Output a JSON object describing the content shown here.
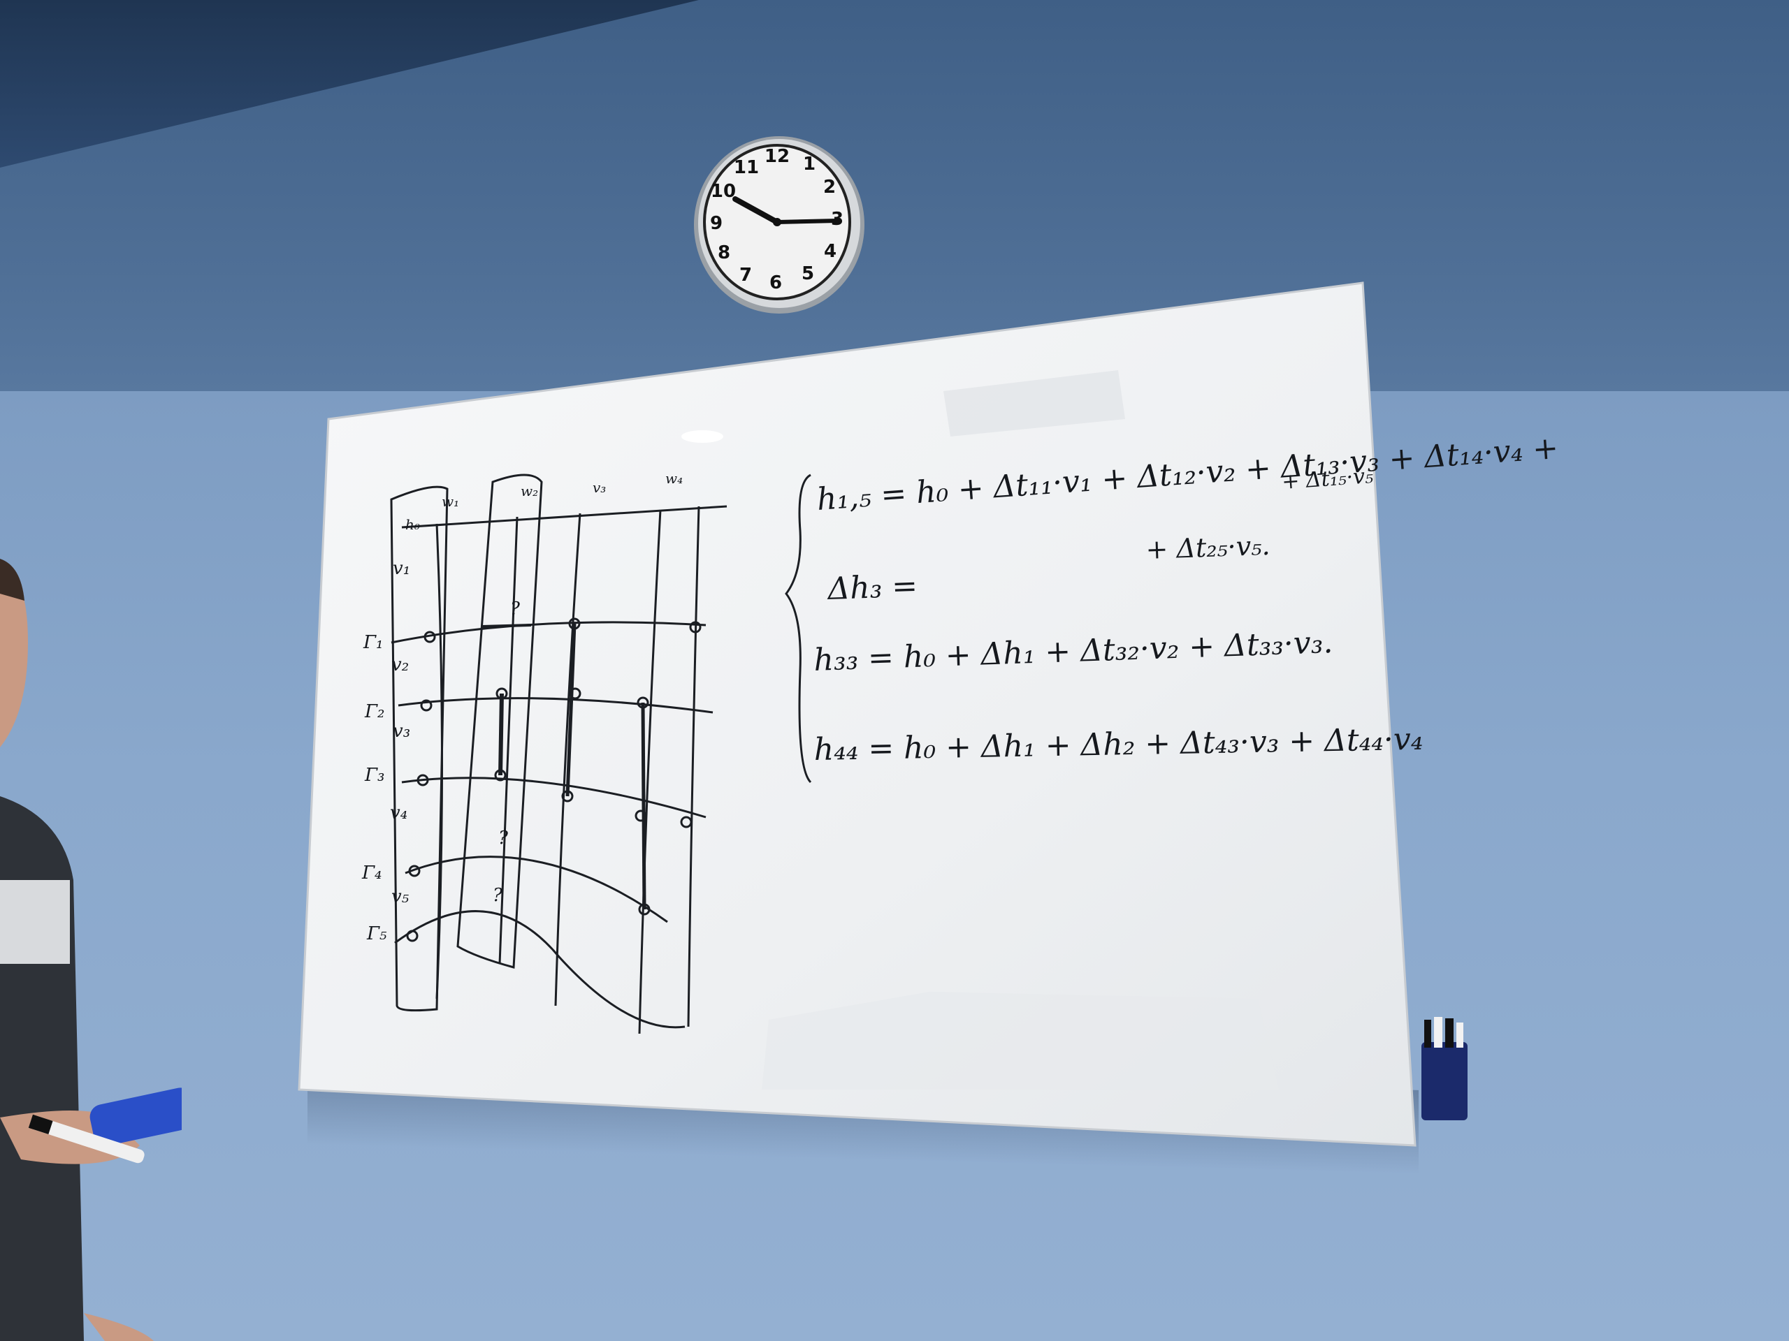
{
  "scene": {
    "description_tags": [
      "office-wall",
      "wall-clock",
      "whiteboard",
      "person-with-marker"
    ]
  },
  "clock": {
    "numerals": [
      "12",
      "1",
      "2",
      "3",
      "4",
      "5",
      "6",
      "7",
      "8",
      "9",
      "10",
      "11"
    ]
  },
  "whiteboard": {
    "equations": [
      "h₁,₅ = h₀ + Δt₁₁·v₁ + Δt₁₂·v₂ + Δt₁₃·v₃ + Δt₁₄·v₄ +",
      "+ Δt₁₅·v₅",
      "Δh₃ =",
      "+ Δt₂₅·v₅.",
      "h₃₃ = h₀ + Δh₁ + Δt₃₂·v₂ + Δt₃₃·v₃.",
      "h₄₄ = h₀ + Δh₁ + Δh₂ + Δt₄₃·v₃ + Δt₄₄·v₄"
    ],
    "diagram_left_labels": [
      "Γ₁",
      "Γ₂",
      "Γ₃",
      "Γ₄",
      "Γ₅"
    ],
    "diagram_v_labels": [
      "v₁",
      "v₂",
      "v₃",
      "v₄",
      "v₅"
    ],
    "diagram_question_marks": [
      "?",
      "?",
      "?"
    ],
    "diagram_top_labels": [
      "h₀",
      "w₁",
      "w₂",
      "v₃",
      "w₄"
    ]
  },
  "colors": {
    "wall": "#8aa8cc",
    "whiteboard": "#f4f5f6",
    "ink": "#15181d"
  }
}
